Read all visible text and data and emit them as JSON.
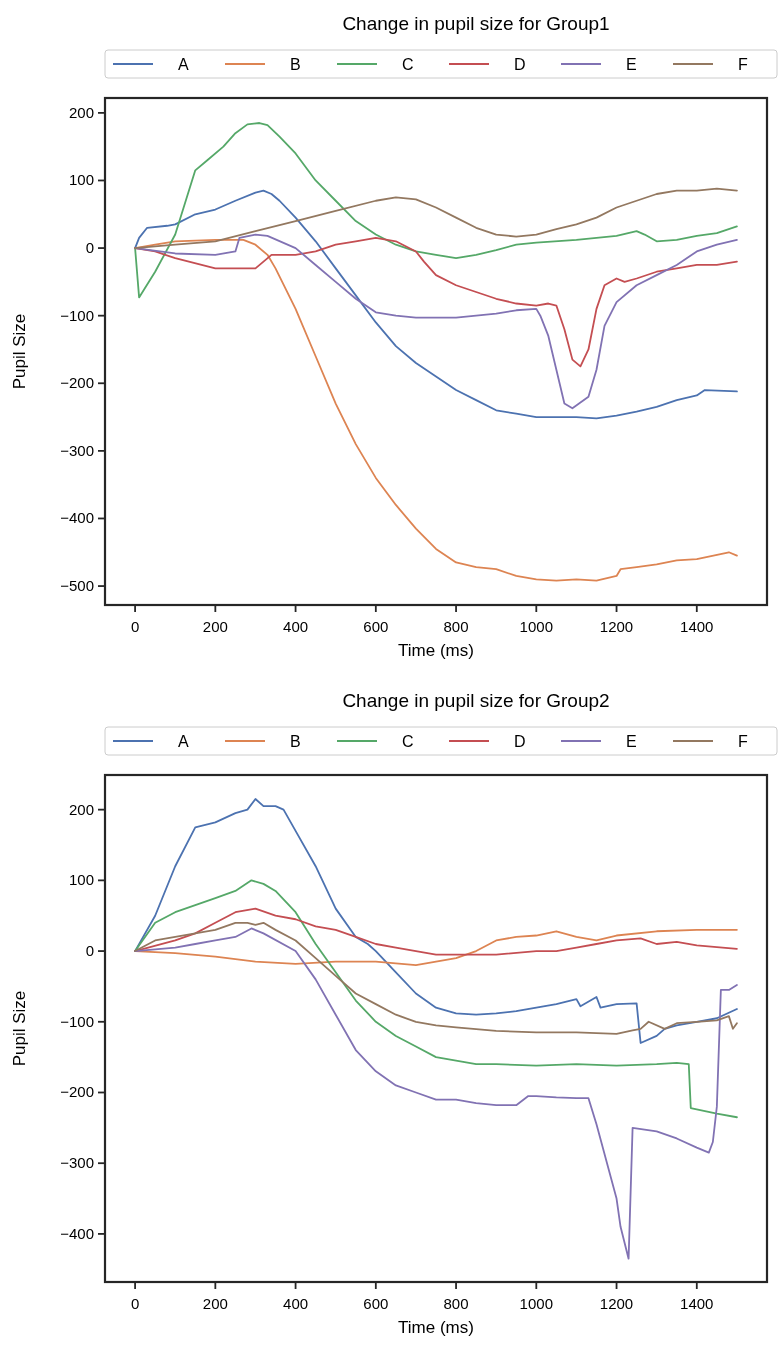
{
  "chart_data": [
    {
      "type": "line",
      "title": "Change in pupil size for Group1",
      "xlabel": "Time (ms)",
      "ylabel": "Pupil Size",
      "xlim": [
        -75,
        1575
      ],
      "ylim": [
        -528,
        222
      ],
      "xticks": [
        0,
        200,
        400,
        600,
        800,
        1000,
        1200,
        1400
      ],
      "yticks": [
        -500,
        -400,
        -300,
        -200,
        -100,
        0,
        100,
        200
      ],
      "legend": "top",
      "series": [
        {
          "name": "A",
          "color": "#4c72b0",
          "x": [
            0,
            10,
            30,
            80,
            100,
            150,
            200,
            250,
            300,
            320,
            340,
            360,
            400,
            450,
            500,
            550,
            600,
            650,
            700,
            750,
            800,
            850,
            900,
            950,
            1000,
            1100,
            1150,
            1200,
            1250,
            1300,
            1350,
            1400,
            1420,
            1500
          ],
          "values": [
            0,
            15,
            30,
            33,
            35,
            50,
            57,
            70,
            82,
            85,
            80,
            70,
            45,
            10,
            -30,
            -70,
            -110,
            -145,
            -170,
            -190,
            -210,
            -225,
            -240,
            -245,
            -250,
            -250,
            -252,
            -248,
            -242,
            -235,
            -225,
            -218,
            -210,
            -212
          ]
        },
        {
          "name": "B",
          "color": "#dd8452",
          "x": [
            0,
            50,
            100,
            200,
            270,
            300,
            330,
            350,
            400,
            450,
            500,
            550,
            600,
            650,
            700,
            750,
            800,
            850,
            900,
            950,
            1000,
            1050,
            1100,
            1150,
            1200,
            1210,
            1250,
            1300,
            1350,
            1400,
            1480,
            1500
          ],
          "values": [
            0,
            5,
            10,
            12,
            12,
            5,
            -10,
            -30,
            -90,
            -160,
            -230,
            -290,
            -340,
            -380,
            -415,
            -445,
            -465,
            -472,
            -475,
            -485,
            -490,
            -492,
            -490,
            -492,
            -485,
            -475,
            -472,
            -468,
            -462,
            -460,
            -450,
            -455
          ]
        },
        {
          "name": "C",
          "color": "#55a868",
          "x": [
            0,
            10,
            50,
            100,
            150,
            180,
            220,
            250,
            280,
            310,
            330,
            360,
            400,
            450,
            500,
            550,
            600,
            650,
            700,
            750,
            800,
            850,
            900,
            950,
            1000,
            1100,
            1200,
            1250,
            1270,
            1300,
            1350,
            1400,
            1450,
            1500
          ],
          "values": [
            0,
            -73,
            -35,
            20,
            115,
            130,
            150,
            170,
            183,
            185,
            182,
            165,
            140,
            100,
            70,
            40,
            20,
            5,
            -5,
            -10,
            -15,
            -10,
            -3,
            5,
            8,
            12,
            18,
            25,
            20,
            10,
            12,
            18,
            22,
            32
          ]
        },
        {
          "name": "D",
          "color": "#c44e52",
          "x": [
            0,
            50,
            100,
            200,
            250,
            300,
            320,
            340,
            400,
            450,
            500,
            550,
            600,
            650,
            700,
            720,
            750,
            800,
            850,
            900,
            950,
            1000,
            1030,
            1050,
            1070,
            1090,
            1110,
            1130,
            1150,
            1170,
            1200,
            1220,
            1250,
            1300,
            1350,
            1400,
            1450,
            1500
          ],
          "values": [
            0,
            -5,
            -15,
            -30,
            -30,
            -30,
            -20,
            -10,
            -10,
            -5,
            5,
            10,
            15,
            10,
            -5,
            -20,
            -40,
            -55,
            -65,
            -75,
            -82,
            -85,
            -82,
            -85,
            -120,
            -165,
            -175,
            -150,
            -90,
            -55,
            -45,
            -50,
            -45,
            -35,
            -30,
            -25,
            -25,
            -20
          ]
        },
        {
          "name": "E",
          "color": "#8172b3",
          "x": [
            0,
            100,
            200,
            250,
            260,
            300,
            330,
            400,
            450,
            500,
            550,
            600,
            650,
            700,
            750,
            800,
            850,
            900,
            950,
            1000,
            1010,
            1030,
            1050,
            1070,
            1090,
            1130,
            1150,
            1170,
            1200,
            1250,
            1300,
            1350,
            1400,
            1450,
            1500
          ],
          "values": [
            0,
            -8,
            -10,
            -5,
            15,
            20,
            18,
            0,
            -25,
            -50,
            -75,
            -95,
            -100,
            -103,
            -103,
            -103,
            -100,
            -97,
            -92,
            -90,
            -100,
            -130,
            -180,
            -230,
            -237,
            -220,
            -180,
            -115,
            -80,
            -55,
            -40,
            -25,
            -5,
            5,
            12
          ]
        },
        {
          "name": "F",
          "color": "#937860",
          "x": [
            0,
            100,
            200,
            300,
            400,
            500,
            600,
            650,
            700,
            750,
            800,
            850,
            900,
            950,
            1000,
            1050,
            1100,
            1150,
            1200,
            1250,
            1300,
            1350,
            1400,
            1450,
            1500
          ],
          "values": [
            0,
            5,
            10,
            25,
            40,
            55,
            70,
            75,
            72,
            60,
            45,
            30,
            20,
            17,
            20,
            28,
            35,
            45,
            60,
            70,
            80,
            85,
            85,
            88,
            85
          ]
        }
      ]
    },
    {
      "type": "line",
      "title": "Change in pupil size for Group2",
      "xlabel": "Time (ms)",
      "ylabel": "Pupil Size",
      "xlim": [
        -75,
        1575
      ],
      "ylim": [
        -468,
        249
      ],
      "xticks": [
        0,
        200,
        400,
        600,
        800,
        1000,
        1200,
        1400
      ],
      "yticks": [
        -400,
        -300,
        -200,
        -100,
        0,
        100,
        200
      ],
      "legend": "top",
      "series": [
        {
          "name": "A",
          "color": "#4c72b0",
          "x": [
            0,
            50,
            100,
            150,
            200,
            250,
            280,
            300,
            320,
            350,
            370,
            400,
            450,
            500,
            550,
            580,
            600,
            650,
            700,
            750,
            800,
            850,
            900,
            950,
            1000,
            1050,
            1100,
            1110,
            1150,
            1160,
            1200,
            1250,
            1260,
            1300,
            1320,
            1350,
            1400,
            1450,
            1500
          ],
          "values": [
            0,
            50,
            120,
            175,
            182,
            195,
            200,
            215,
            205,
            205,
            200,
            170,
            120,
            60,
            20,
            10,
            0,
            -30,
            -60,
            -80,
            -88,
            -90,
            -88,
            -85,
            -80,
            -75,
            -68,
            -78,
            -65,
            -80,
            -75,
            -74,
            -130,
            -120,
            -110,
            -105,
            -100,
            -95,
            -82
          ]
        },
        {
          "name": "B",
          "color": "#dd8452",
          "x": [
            0,
            100,
            200,
            300,
            400,
            500,
            600,
            700,
            800,
            850,
            900,
            950,
            1000,
            1050,
            1100,
            1150,
            1200,
            1300,
            1400,
            1500
          ],
          "values": [
            0,
            -3,
            -8,
            -15,
            -18,
            -15,
            -15,
            -20,
            -10,
            0,
            15,
            20,
            22,
            28,
            20,
            15,
            22,
            28,
            30,
            30
          ]
        },
        {
          "name": "C",
          "color": "#55a868",
          "x": [
            0,
            50,
            100,
            150,
            200,
            250,
            290,
            320,
            350,
            400,
            450,
            500,
            550,
            600,
            650,
            700,
            750,
            800,
            850,
            900,
            1000,
            1100,
            1200,
            1300,
            1350,
            1380,
            1385,
            1450,
            1500
          ],
          "values": [
            0,
            40,
            55,
            65,
            75,
            85,
            100,
            95,
            85,
            55,
            10,
            -30,
            -70,
            -100,
            -120,
            -135,
            -150,
            -155,
            -160,
            -160,
            -162,
            -160,
            -162,
            -160,
            -158,
            -160,
            -222,
            -230,
            -235
          ]
        },
        {
          "name": "D",
          "color": "#c44e52",
          "x": [
            0,
            100,
            150,
            200,
            250,
            300,
            350,
            400,
            450,
            500,
            550,
            600,
            650,
            700,
            750,
            800,
            850,
            900,
            1000,
            1050,
            1100,
            1150,
            1200,
            1260,
            1300,
            1350,
            1400,
            1500
          ],
          "values": [
            0,
            15,
            25,
            40,
            55,
            60,
            50,
            45,
            35,
            30,
            20,
            10,
            5,
            0,
            -5,
            -5,
            -5,
            -5,
            0,
            0,
            5,
            10,
            15,
            18,
            10,
            13,
            8,
            3
          ]
        },
        {
          "name": "E",
          "color": "#8172b3",
          "x": [
            0,
            100,
            150,
            200,
            250,
            290,
            320,
            400,
            450,
            500,
            550,
            600,
            650,
            700,
            750,
            800,
            850,
            900,
            950,
            980,
            1000,
            1050,
            1100,
            1130,
            1150,
            1200,
            1210,
            1230,
            1240,
            1300,
            1350,
            1400,
            1430,
            1440,
            1450,
            1460,
            1480,
            1500
          ],
          "values": [
            0,
            5,
            10,
            15,
            20,
            32,
            25,
            0,
            -40,
            -90,
            -140,
            -170,
            -190,
            -200,
            -210,
            -210,
            -215,
            -218,
            -218,
            -205,
            -205,
            -207,
            -208,
            -208,
            -245,
            -350,
            -390,
            -435,
            -250,
            -255,
            -265,
            -278,
            -285,
            -270,
            -220,
            -55,
            -55,
            -48
          ]
        },
        {
          "name": "F",
          "color": "#937860",
          "x": [
            0,
            50,
            100,
            200,
            250,
            280,
            300,
            320,
            350,
            400,
            450,
            500,
            550,
            600,
            650,
            700,
            750,
            800,
            900,
            1000,
            1100,
            1200,
            1240,
            1260,
            1280,
            1320,
            1350,
            1400,
            1450,
            1480,
            1490,
            1500
          ],
          "values": [
            0,
            15,
            20,
            30,
            40,
            40,
            37,
            40,
            30,
            15,
            -10,
            -35,
            -60,
            -75,
            -90,
            -100,
            -105,
            -108,
            -113,
            -115,
            -115,
            -117,
            -112,
            -110,
            -100,
            -110,
            -102,
            -100,
            -98,
            -92,
            -110,
            -102
          ]
        }
      ]
    }
  ]
}
